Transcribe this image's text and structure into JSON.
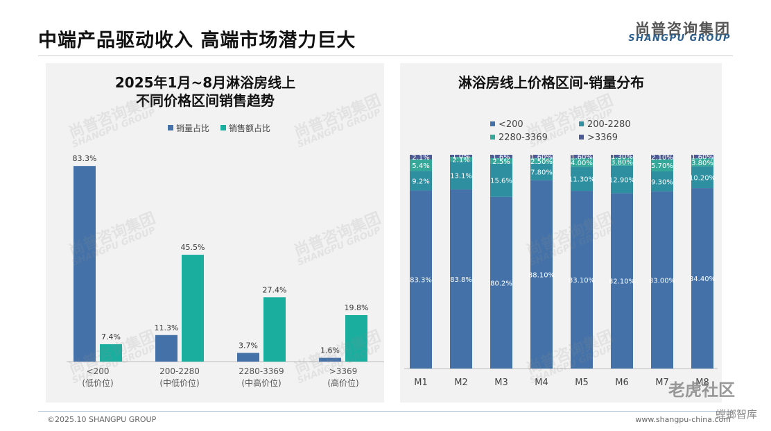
{
  "header": {
    "title": "中端产品驱动收入 高端市场潜力巨大",
    "brand_cn": "尚普咨询集团",
    "brand_en": "SHANGPU GROUP"
  },
  "footer": {
    "left": "©2025.10 SHANGPU GROUP",
    "right": "www.shangpu-china.com"
  },
  "watermark": {
    "cn": "尚普咨询集团",
    "en": "SHANGPU GROUP"
  },
  "overlay": {
    "logo": "老虎社区",
    "sub": "螳螂智库"
  },
  "colors": {
    "dark_blue": "#4472a8",
    "teal": "#1aae9f",
    "teal_mid": "#2e8fa0",
    "teal_light": "#35a89a",
    "navy": "#4d5a94"
  },
  "chart_data": [
    {
      "type": "bar",
      "title": [
        "2025年1月~8月淋浴房线上",
        "不同价格区间销售趋势"
      ],
      "categories": [
        [
          "<200",
          "(低价位)"
        ],
        [
          "200-2280",
          "(中低价位)"
        ],
        [
          "2280-3369",
          "(中高价位)"
        ],
        [
          ">3369",
          "(高价位)"
        ]
      ],
      "series": [
        {
          "name": "销量占比",
          "color": "#4472a8",
          "values": [
            83.3,
            11.3,
            3.7,
            1.6
          ],
          "labels": [
            "83.3%",
            "11.3%",
            "3.7%",
            "1.6%"
          ]
        },
        {
          "name": "销售额占比",
          "color": "#1aae9f",
          "values": [
            7.4,
            45.5,
            27.4,
            19.8
          ],
          "labels": [
            "7.4%",
            "45.5%",
            "27.4%",
            "19.8%"
          ]
        }
      ],
      "ylim": [
        0,
        90
      ],
      "legend": "top-right"
    },
    {
      "type": "bar",
      "stacked": true,
      "title": [
        "淋浴房线上价格区间-销量分布"
      ],
      "categories": [
        "M1",
        "M2",
        "M3",
        "M4",
        "M5",
        "M6",
        "M7",
        "M8"
      ],
      "series": [
        {
          "name": "<200",
          "color": "#4472a8",
          "values": [
            83.3,
            83.8,
            80.2,
            88.1,
            83.1,
            82.1,
            83.0,
            84.4
          ],
          "labels": [
            "83.3%",
            "83.8%",
            "80.2%",
            "88.10%",
            "83.10%",
            "82.10%",
            "83.00%",
            "84.40%"
          ]
        },
        {
          "name": "200-2280",
          "color": "#2e8fa0",
          "values": [
            9.2,
            13.1,
            15.6,
            7.8,
            11.3,
            12.9,
            9.3,
            10.2
          ],
          "labels": [
            "9.2%",
            "13.1%",
            "15.6%",
            "7.80%",
            "11.30%",
            "12.90%",
            "9.30%",
            "10.20%"
          ]
        },
        {
          "name": "2280-3369",
          "color": "#35a89a",
          "values": [
            5.4,
            2.1,
            2.5,
            2.5,
            4.0,
            3.8,
            5.7,
            3.8
          ],
          "labels": [
            "5.4%",
            "2.1%",
            "2.5%",
            "2.50%",
            "4.00%",
            "3.80%",
            "5.70%",
            "3.80%"
          ]
        },
        {
          "name": ">3369",
          "color": "#4d5a94",
          "values": [
            2.1,
            1.0,
            1.6,
            1.6,
            1.6,
            1.3,
            2.1,
            1.6
          ],
          "labels": [
            "2.1%",
            "1.0%",
            "1.6%",
            "1.60%",
            "1.60%",
            "1.30%",
            "2.10%",
            "1.60%"
          ]
        }
      ],
      "ylim": [
        0,
        100
      ],
      "legend": "top"
    }
  ]
}
